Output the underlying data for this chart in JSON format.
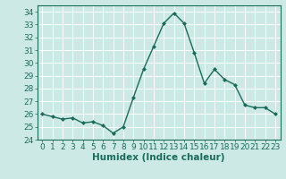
{
  "x": [
    0,
    1,
    2,
    3,
    4,
    5,
    6,
    7,
    8,
    9,
    10,
    11,
    12,
    13,
    14,
    15,
    16,
    17,
    18,
    19,
    20,
    21,
    22,
    23
  ],
  "y": [
    26.0,
    25.8,
    25.6,
    25.7,
    25.3,
    25.4,
    25.1,
    24.5,
    25.0,
    27.3,
    29.5,
    31.3,
    33.1,
    33.9,
    33.1,
    30.8,
    28.4,
    29.5,
    28.7,
    28.3,
    26.7,
    26.5,
    26.5,
    26.0
  ],
  "line_color": "#1a6b5a",
  "marker": "D",
  "marker_size": 2.0,
  "background_color": "#cce9e5",
  "grid_color": "#b0d8d3",
  "xlabel": "Humidex (Indice chaleur)",
  "ylim": [
    24,
    34.5
  ],
  "xlim": [
    -0.5,
    23.5
  ],
  "yticks": [
    24,
    25,
    26,
    27,
    28,
    29,
    30,
    31,
    32,
    33,
    34
  ],
  "xticks": [
    0,
    1,
    2,
    3,
    4,
    5,
    6,
    7,
    8,
    9,
    10,
    11,
    12,
    13,
    14,
    15,
    16,
    17,
    18,
    19,
    20,
    21,
    22,
    23
  ],
  "tick_color": "#1a6b5a",
  "label_fontsize": 6.5,
  "xlabel_fontsize": 7.5,
  "xlabel_fontweight": "bold",
  "linewidth": 1.0
}
